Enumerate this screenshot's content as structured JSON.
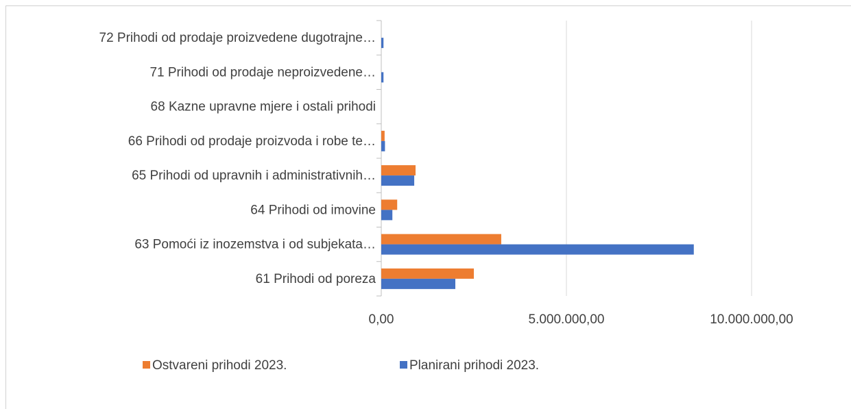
{
  "chart_data": {
    "type": "bar",
    "orientation": "horizontal",
    "categories": [
      "72 Prihodi od prodaje proizvedene dugotrajne…",
      "71 Prihodi od prodaje neproizvedene…",
      "68 Kazne upravne mjere i ostali prihodi",
      "66 Prihodi od prodaje proizvoda i robe te…",
      "65 Prihodi od upravnih i administrativnih…",
      "64 Prihodi od imovine",
      "63 Pomoći iz inozemstva i od subjekata…",
      "61 Prihodi od poreza"
    ],
    "series": [
      {
        "name": "Ostvareni prihodi 2023.",
        "color": "#ed7d31",
        "values": [
          0,
          0,
          0,
          90000,
          926000,
          430000,
          3240000,
          2500000
        ]
      },
      {
        "name": "Planirani prihodi  2023.",
        "color": "#4472c4",
        "values": [
          60000,
          60000,
          0,
          100000,
          890000,
          300000,
          8440000,
          2000000
        ]
      }
    ],
    "xlim": [
      0,
      10000000
    ],
    "xticks": [
      {
        "value": 0,
        "label": "0,00"
      },
      {
        "value": 5000000,
        "label": "5.000.000,00"
      },
      {
        "value": 10000000,
        "label": "10.000.000,00"
      }
    ],
    "grid": true,
    "legend": "bottom"
  }
}
